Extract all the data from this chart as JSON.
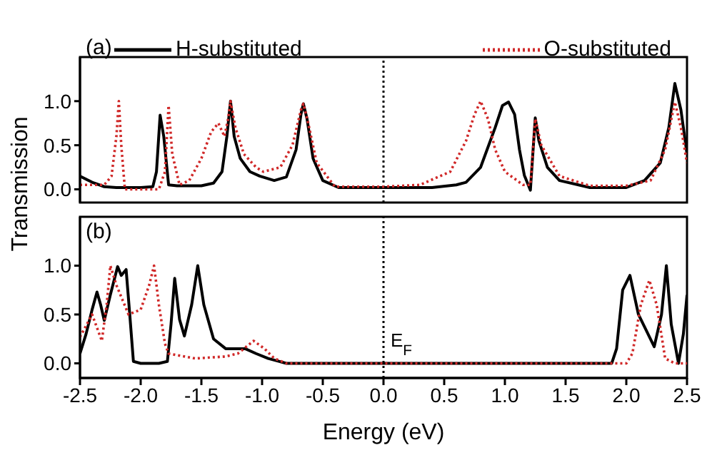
{
  "chart_data": [
    {
      "type": "line",
      "ylabel": "Transmission",
      "annotations": [
        "(a)"
      ],
      "xlim": [
        -2.5,
        2.5
      ],
      "ylim": [
        -0.15,
        1.5
      ],
      "xticks": [
        {
          "value": -2.5,
          "label": null
        },
        {
          "value": -2,
          "label": null
        },
        {
          "value": -1.5,
          "label": null
        },
        {
          "value": -1,
          "label": null
        },
        {
          "value": -0.5,
          "label": null
        },
        {
          "value": 0,
          "label": null
        },
        {
          "value": 0.5,
          "label": null
        },
        {
          "value": 1,
          "label": null
        },
        {
          "value": 1.5,
          "label": null
        },
        {
          "value": 2,
          "label": null
        },
        {
          "value": 2.5,
          "label": null
        }
      ],
      "yticks": [
        {
          "value": 0,
          "label": "0.0"
        },
        {
          "value": 0.5,
          "label": "0.5"
        },
        {
          "value": 1,
          "label": "1.0"
        }
      ],
      "tick_labels": "y",
      "legend": "top",
      "marker": "none",
      "ref_lines": [
        {
          "axis": "x",
          "value": 0,
          "color": "#000000",
          "line_style": "dotted"
        }
      ],
      "series": [
        {
          "name": "H-substituted",
          "color": "#000000",
          "line_style": "solid",
          "x": [
            -2.5,
            -2.4,
            -2.3,
            -2.2,
            -2.0,
            -1.9,
            -1.87,
            -1.84,
            -1.81,
            -1.77,
            -1.7,
            -1.5,
            -1.4,
            -1.33,
            -1.29,
            -1.26,
            -1.23,
            -1.18,
            -1.1,
            -1.02,
            -0.9,
            -0.8,
            -0.72,
            -0.68,
            -0.66,
            -0.63,
            -0.58,
            -0.5,
            -0.37,
            0,
            0.4,
            0.6,
            0.68,
            0.8,
            0.92,
            0.98,
            1.03,
            1.08,
            1.12,
            1.16,
            1.21,
            1.23,
            1.25,
            1.28,
            1.35,
            1.45,
            1.7,
            2.0,
            2.15,
            2.28,
            2.35,
            2.4,
            2.45,
            2.5
          ],
          "values": [
            0.15,
            0.08,
            0.03,
            0.02,
            0.02,
            0.03,
            0.2,
            0.84,
            0.6,
            0.05,
            0.04,
            0.04,
            0.07,
            0.2,
            0.6,
            1.0,
            0.6,
            0.35,
            0.2,
            0.15,
            0.1,
            0.14,
            0.45,
            0.85,
            0.97,
            0.8,
            0.35,
            0.1,
            0.02,
            0.02,
            0.02,
            0.05,
            0.08,
            0.25,
            0.7,
            0.95,
            0.99,
            0.85,
            0.45,
            0.16,
            -0.01,
            0.4,
            0.81,
            0.55,
            0.25,
            0.1,
            0.02,
            0.02,
            0.1,
            0.3,
            0.7,
            1.2,
            0.9,
            0.4
          ]
        },
        {
          "name": "O-substituted",
          "color": "#d02828",
          "line_style": "dotted",
          "x": [
            -2.5,
            -2.3,
            -2.24,
            -2.2,
            -2.18,
            -2.16,
            -2.13,
            -2.0,
            -1.85,
            -1.8,
            -1.77,
            -1.74,
            -1.68,
            -1.6,
            -1.5,
            -1.42,
            -1.36,
            -1.31,
            -1.28,
            -1.26,
            -1.22,
            -1.15,
            -1.05,
            -0.99,
            -0.85,
            -0.75,
            -0.68,
            -0.66,
            -0.62,
            -0.55,
            -0.4,
            0,
            0.3,
            0.55,
            0.68,
            0.75,
            0.8,
            0.86,
            0.92,
            1.0,
            1.15,
            1.21,
            1.25,
            1.3,
            1.45,
            1.7,
            2.0,
            2.2,
            2.32,
            2.4,
            2.45,
            2.5
          ],
          "values": [
            0.05,
            0.05,
            0.15,
            0.6,
            1.0,
            0.5,
            0.0,
            0.0,
            0.0,
            0.2,
            0.95,
            0.4,
            0.05,
            0.1,
            0.35,
            0.65,
            0.75,
            0.6,
            0.8,
            1.0,
            0.7,
            0.4,
            0.25,
            0.2,
            0.25,
            0.5,
            0.9,
            0.97,
            0.75,
            0.3,
            0.03,
            0.03,
            0.05,
            0.2,
            0.55,
            0.85,
            1.0,
            0.8,
            0.45,
            0.2,
            0.05,
            0.05,
            0.8,
            0.5,
            0.15,
            0.04,
            0.04,
            0.1,
            0.45,
            0.99,
            0.7,
            0.3
          ]
        }
      ]
    },
    {
      "type": "line",
      "xlabel": "Energy (eV)",
      "annotations": [
        "(b)",
        {
          "text": "E$_{F}$",
          "x": 0,
          "y": 0.2
        }
      ],
      "xlim": [
        -2.5,
        2.5
      ],
      "ylim": [
        -0.15,
        1.5
      ],
      "xticks": [
        {
          "value": -2.5,
          "label": "-2.5"
        },
        {
          "value": -2,
          "label": "-2.0"
        },
        {
          "value": -1.5,
          "label": "-1.5"
        },
        {
          "value": -1,
          "label": "-1.0"
        },
        {
          "value": -0.5,
          "label": "-0.5"
        },
        {
          "value": 0,
          "label": "0.0"
        },
        {
          "value": 0.5,
          "label": "0.5"
        },
        {
          "value": 1,
          "label": "1.0"
        },
        {
          "value": 1.5,
          "label": "1.5"
        },
        {
          "value": 2,
          "label": "2.0"
        },
        {
          "value": 2.5,
          "label": "2.5"
        }
      ],
      "yticks": [
        {
          "value": 0,
          "label": "0.0"
        },
        {
          "value": 0.5,
          "label": "0.5"
        },
        {
          "value": 1,
          "label": "1.0"
        }
      ],
      "marker": "none",
      "ref_lines": [
        {
          "axis": "x",
          "value": 0,
          "color": "#000000",
          "line_style": "dotted"
        }
      ],
      "series": [
        {
          "color": "#000000",
          "line_style": "solid",
          "x": [
            -2.5,
            -2.45,
            -2.4,
            -2.36,
            -2.33,
            -2.3,
            -2.25,
            -2.19,
            -2.16,
            -2.12,
            -2.09,
            -2.06,
            -2.0,
            -1.85,
            -1.78,
            -1.75,
            -1.72,
            -1.68,
            -1.64,
            -1.58,
            -1.53,
            -1.48,
            -1.4,
            -1.3,
            -1.2,
            -1.14,
            -1.05,
            -0.95,
            -0.8,
            0,
            1.0,
            1.88,
            1.92,
            1.97,
            2.03,
            2.1,
            2.23,
            2.29,
            2.33,
            2.37,
            2.43,
            2.47,
            2.5
          ],
          "values": [
            0.1,
            0.3,
            0.55,
            0.73,
            0.6,
            0.44,
            0.7,
            0.99,
            0.9,
            0.96,
            0.5,
            0.02,
            0.0,
            0.0,
            0.02,
            0.4,
            0.87,
            0.45,
            0.28,
            0.6,
            1.0,
            0.6,
            0.25,
            0.15,
            0.15,
            0.15,
            0.1,
            0.05,
            0.0,
            0.0,
            0.0,
            0.0,
            0.15,
            0.75,
            0.9,
            0.5,
            0.17,
            0.5,
            1.0,
            0.4,
            0.0,
            0.3,
            0.7
          ]
        },
        {
          "color": "#d02828",
          "line_style": "dotted",
          "x": [
            -2.5,
            -2.4,
            -2.32,
            -2.28,
            -2.25,
            -2.2,
            -2.1,
            -2.0,
            -1.93,
            -1.89,
            -1.85,
            -1.8,
            -1.77,
            -1.55,
            -1.3,
            -1.2,
            -1.07,
            -0.98,
            -0.9,
            -0.8,
            0,
            1.0,
            2.0,
            2.05,
            2.12,
            2.19,
            2.25,
            2.32,
            2.4,
            2.5
          ],
          "values": [
            0.27,
            0.5,
            0.23,
            0.6,
            1.0,
            0.8,
            0.5,
            0.55,
            0.8,
            1.0,
            0.6,
            0.2,
            0.1,
            0.05,
            0.07,
            0.1,
            0.23,
            0.15,
            0.05,
            0.0,
            0.0,
            0.0,
            0.0,
            0.1,
            0.6,
            0.85,
            0.6,
            0.05,
            0.0,
            0.0
          ]
        }
      ]
    }
  ]
}
